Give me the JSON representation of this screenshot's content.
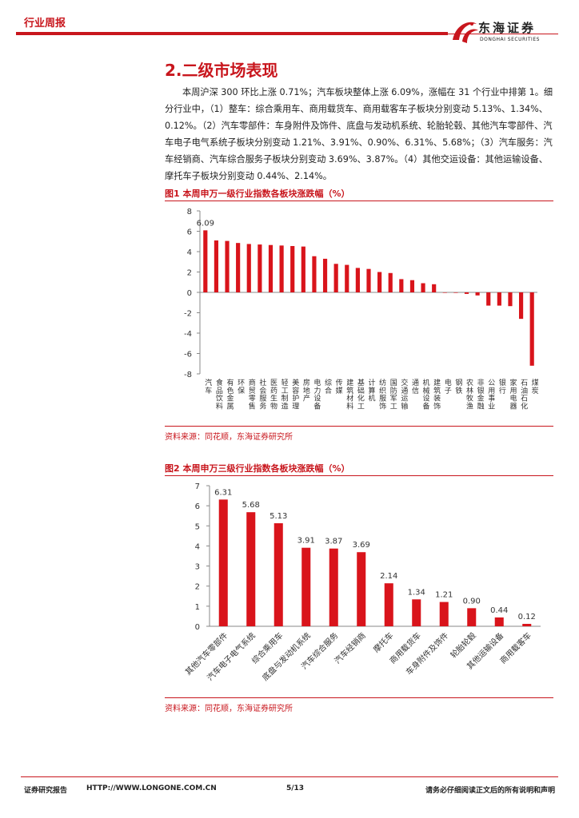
{
  "header": {
    "tag": "行业周报",
    "logo_cn": "东海证券",
    "logo_en": "DONGHAI SECURITIES"
  },
  "section": {
    "title": "2.二级市场表现"
  },
  "paragraph": "本周沪深 300 环比上涨 0.71%；汽车板块整体上涨 6.09%，涨幅在 31 个行业中排第 1。细分行业中，（1）整车：综合乘用车、商用载货车、商用载客车子板块分别变动 5.13%、1.34%、0.12%。（2）汽车零部件：车身附件及饰件、底盘与发动机系统、轮胎轮毂、其他汽车零部件、汽车电子电气系统子板块分别变动 1.21%、3.91%、0.90%、6.31%、5.68%；（3）汽车服务：汽车经销商、汽车综合服务子板块分别变动 3.69%、3.87%。（4）其他交运设备：其他运输设备、摩托车子板块分别变动 0.44%、2.14%。",
  "fig1": {
    "title": "图1  本周申万一级行业指数各板块涨跌幅（%）",
    "source": "资料来源：同花顺，东海证券研究所"
  },
  "fig2": {
    "title": "图2  本周申万三级行业指数各板块涨跌幅（%）",
    "source": "资料来源：同花顺，东海证券研究所"
  },
  "colors": {
    "accent": "#c8161d",
    "bar": "#d9141b"
  },
  "chart_data": [
    {
      "type": "bar",
      "title": "本周申万一级行业指数各板块涨跌幅（%）",
      "categories": [
        "汽车",
        "食品饮料",
        "有色金属",
        "环保",
        "商贸零售",
        "社会服务",
        "医药生物",
        "轻工制造",
        "美容护理",
        "房地产",
        "电力设备",
        "综合",
        "传媒",
        "建筑材料",
        "基础化工",
        "计算机",
        "纺织服饰",
        "国防军工",
        "交通运输",
        "通信",
        "机械设备",
        "建筑装饰",
        "电子",
        "钢铁",
        "农林牧渔",
        "非银金融",
        "公用事业",
        "银行",
        "家用电器",
        "石油石化",
        "煤炭"
      ],
      "values": [
        6.09,
        5.1,
        5.05,
        4.85,
        4.75,
        4.7,
        4.65,
        4.6,
        4.55,
        4.5,
        3.55,
        3.3,
        2.8,
        2.7,
        2.4,
        2.3,
        2.0,
        1.9,
        1.3,
        1.2,
        0.9,
        0.8,
        0.0,
        -0.05,
        -0.15,
        -0.3,
        -1.3,
        -1.3,
        -1.35,
        -2.6,
        -7.2
      ],
      "data_labels": {
        "汽车": "6.09"
      },
      "ylim": [
        -8,
        8
      ],
      "yticks": [
        8,
        6,
        4,
        2,
        0,
        -2,
        -4,
        -6,
        -8
      ],
      "grid": false
    },
    {
      "type": "bar",
      "title": "本周申万三级行业指数各板块涨跌幅（%）",
      "categories": [
        "其他汽车零部件",
        "汽车电子电气系统",
        "综合乘用车",
        "底盘与发动机系统",
        "汽车综合服务",
        "汽车经销商",
        "摩托车",
        "商用载货车",
        "车身附件及饰件",
        "轮胎轮毂",
        "其他运输设备",
        "商用载客车"
      ],
      "values": [
        6.31,
        5.68,
        5.13,
        3.91,
        3.87,
        3.69,
        2.14,
        1.34,
        1.21,
        0.9,
        0.44,
        0.12
      ],
      "data_labels": [
        "6.31",
        "5.68",
        "5.13",
        "3.91",
        "3.87",
        "3.69",
        "2.14",
        "1.34",
        "1.21",
        "0.90",
        "0.44",
        "0.12"
      ],
      "ylim": [
        0,
        7
      ],
      "yticks": [
        7,
        6,
        5,
        4,
        3,
        2,
        1,
        0
      ],
      "grid": false
    }
  ],
  "footer": {
    "left": "证券研究报告",
    "url": "HTTP://WWW.LONGONE.COM.CN",
    "page": "5/13",
    "right": "请务必仔细阅读正文后的所有说明和声明"
  }
}
